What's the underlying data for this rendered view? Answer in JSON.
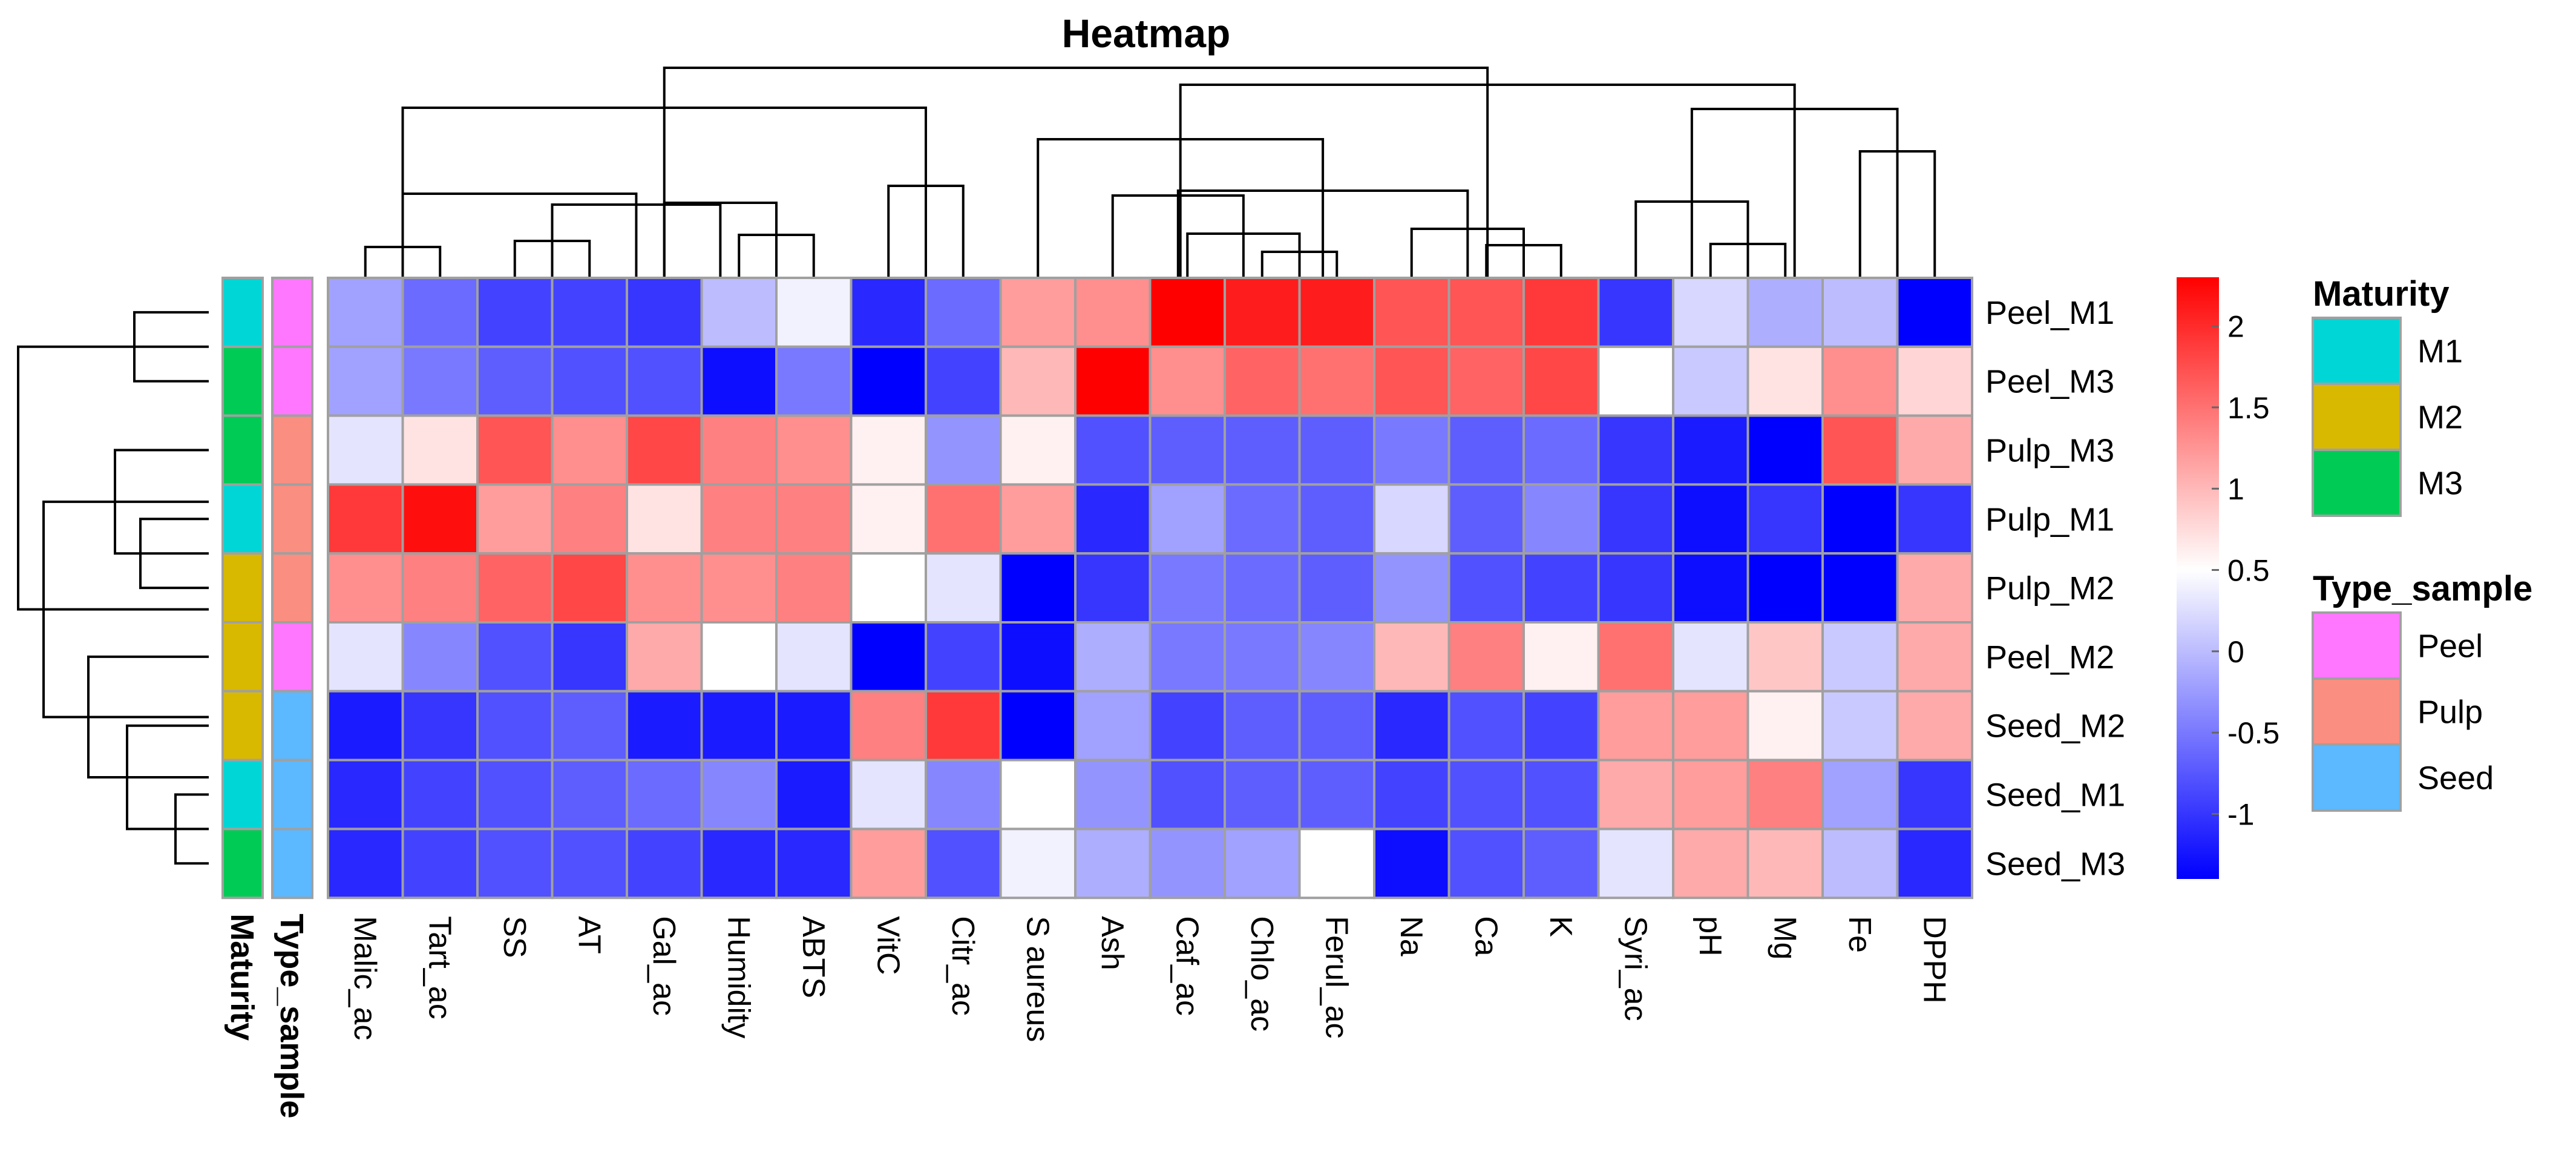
{
  "chart_data": {
    "type": "heatmap",
    "title": "Heatmap",
    "rows": [
      "Peel_M1",
      "Peel_M3",
      "Pulp_M3",
      "Pulp_M1",
      "Pulp_M2",
      "Peel_M2",
      "Seed_M2",
      "Seed_M1",
      "Seed_M3"
    ],
    "columns": [
      "Malic_ac",
      "Tart_ac",
      "SS",
      "AT",
      "Gal_ac",
      "Humidity",
      "ABTS",
      "VitC",
      "Citr_ac",
      "S aureus",
      "Ash",
      "Caf_ac",
      "Chlo_ac",
      "Ferul_ac",
      "Na",
      "Ca",
      "K",
      "Syri_ac",
      "pH",
      "Mg",
      "Fe",
      "DPPH"
    ],
    "values": [
      [
        -0.2,
        -0.6,
        -0.9,
        -0.9,
        -1.0,
        0.0,
        0.4,
        -1.1,
        -0.6,
        1.2,
        1.3,
        2.3,
        2.1,
        2.1,
        1.7,
        1.7,
        1.9,
        -1.0,
        0.2,
        -0.1,
        0.0,
        -1.4
      ],
      [
        -0.2,
        -0.5,
        -0.7,
        -0.8,
        -0.8,
        -1.3,
        -0.5,
        -1.4,
        -0.9,
        1.0,
        2.3,
        1.3,
        1.6,
        1.5,
        1.7,
        1.6,
        1.8,
        0.5,
        0.1,
        0.7,
        1.3,
        0.8
      ],
      [
        0.3,
        0.7,
        1.7,
        1.3,
        1.8,
        1.4,
        1.3,
        0.6,
        -0.3,
        0.6,
        -0.8,
        -0.7,
        -0.7,
        -0.7,
        -0.5,
        -0.7,
        -0.6,
        -1.0,
        -1.2,
        -1.4,
        1.7,
        1.1
      ],
      [
        1.9,
        2.2,
        1.2,
        1.4,
        0.7,
        1.4,
        1.4,
        0.6,
        1.5,
        1.2,
        -1.1,
        -0.2,
        -0.6,
        -0.7,
        0.2,
        -0.7,
        -0.4,
        -1.0,
        -1.3,
        -1.0,
        -1.4,
        -1.0
      ],
      [
        1.3,
        1.4,
        1.6,
        1.8,
        1.3,
        1.3,
        1.4,
        0.5,
        0.3,
        -1.4,
        -1.0,
        -0.5,
        -0.6,
        -0.7,
        -0.3,
        -0.8,
        -0.9,
        -1.0,
        -1.3,
        -1.4,
        -1.4,
        1.1
      ],
      [
        0.3,
        -0.4,
        -0.8,
        -1.0,
        1.1,
        0.5,
        0.3,
        -1.4,
        -0.9,
        -1.3,
        -0.1,
        -0.5,
        -0.5,
        -0.4,
        1.0,
        1.4,
        0.6,
        1.5,
        0.3,
        0.9,
        0.1,
        1.1
      ],
      [
        -1.2,
        -1.0,
        -0.8,
        -0.7,
        -1.2,
        -1.2,
        -1.2,
        1.4,
        1.9,
        -1.4,
        -0.2,
        -0.9,
        -0.7,
        -0.7,
        -1.1,
        -0.8,
        -0.9,
        1.2,
        1.2,
        0.6,
        0.1,
        1.1
      ],
      [
        -1.1,
        -0.9,
        -0.8,
        -0.7,
        -0.6,
        -0.4,
        -1.2,
        0.3,
        -0.4,
        0.5,
        -0.3,
        -0.8,
        -0.7,
        -0.7,
        -0.9,
        -0.8,
        -0.8,
        1.1,
        1.2,
        1.4,
        -0.2,
        -1.0
      ],
      [
        -1.1,
        -0.9,
        -0.8,
        -0.8,
        -0.9,
        -1.1,
        -1.1,
        1.2,
        -0.8,
        0.4,
        -0.1,
        -0.3,
        -0.2,
        0.5,
        -1.3,
        -0.8,
        -0.7,
        0.3,
        1.1,
        1.0,
        0.0,
        -1.1
      ]
    ],
    "row_annotations": {
      "Maturity": [
        "M1",
        "M3",
        "M3",
        "M1",
        "M2",
        "M2",
        "M2",
        "M1",
        "M3"
      ],
      "Type_sample": [
        "Peel",
        "Peel",
        "Pulp",
        "Pulp",
        "Pulp",
        "Peel",
        "Seed",
        "Seed",
        "Seed"
      ]
    },
    "annotation_columns": [
      "Maturity",
      "Type_sample"
    ],
    "color_scale": {
      "min": -1.4,
      "mid": 0.5,
      "max": 2.3,
      "low_color": "#0000FF",
      "mid_color": "#FFFFFF",
      "high_color": "#FF0000",
      "ticks": [
        "2",
        "1.5",
        "1",
        "0.5",
        "0",
        "-0.5",
        "-1"
      ],
      "tick_values": [
        2,
        1.5,
        1,
        0.5,
        0,
        -0.5,
        -1
      ]
    },
    "legends": [
      {
        "title": "Maturity",
        "items": [
          {
            "label": "M1",
            "color": "#00D6D6"
          },
          {
            "label": "M2",
            "color": "#D9B800"
          },
          {
            "label": "M3",
            "color": "#00CC55"
          }
        ]
      },
      {
        "title": "Type_sample",
        "items": [
          {
            "label": "Peel",
            "color": "#FF77FF"
          },
          {
            "label": "Pulp",
            "color": "#FA8E80"
          },
          {
            "label": "Seed",
            "color": "#5CB8FF"
          }
        ]
      }
    ],
    "cell_border_color": "#A0A0A0"
  }
}
